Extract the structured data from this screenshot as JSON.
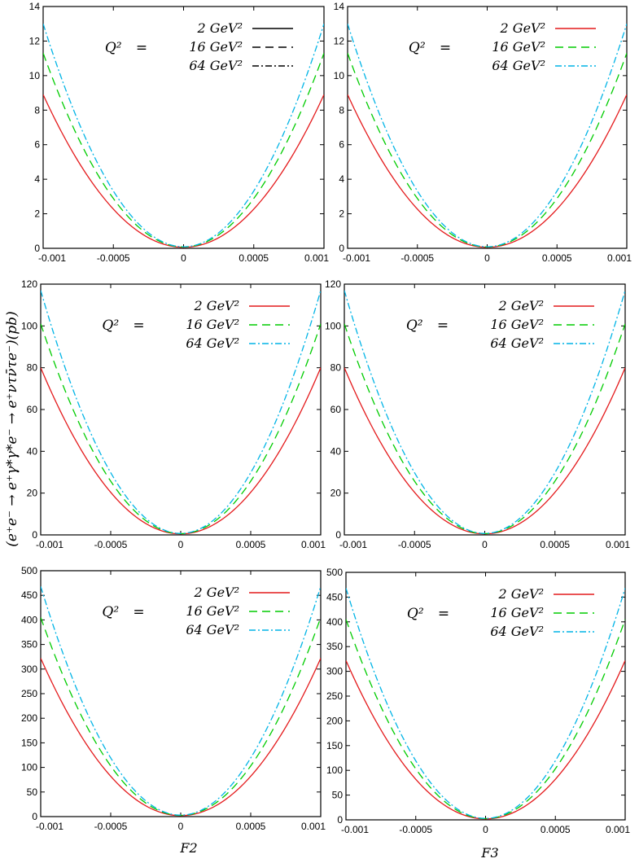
{
  "figure": {
    "ylabel": "(e⁺e⁻ → e⁺γ*γ*e⁻ → e⁺ντν̄τe⁻)(pb)",
    "xlabels": [
      "F2",
      "F3"
    ]
  },
  "legend": {
    "q2_label": "Q²",
    "equals": "=",
    "entries": [
      "2 GeV²",
      "16 GeV²",
      "64 GeV²"
    ]
  },
  "colors": {
    "series_2": "#e41a1c",
    "series_16": "#00cc00",
    "series_64": "#00b4e6",
    "bw": "#000000",
    "axis": "#000000"
  },
  "chart_data": [
    {
      "id": "row1-F2",
      "type": "line",
      "xlabel": "F2",
      "color_mode": "bw-legend",
      "xlim": [
        -0.001,
        0.001
      ],
      "ylim": [
        0,
        14
      ],
      "xticks": [
        "-0.001",
        "-0.0005",
        "0",
        "0.0005",
        "0.001"
      ],
      "yticks": [
        "0",
        "2",
        "4",
        "6",
        "8",
        "10",
        "12",
        "14"
      ],
      "series": [
        {
          "name": "2 GeV²",
          "x": [
            -0.001,
            -0.0005,
            0,
            0.0005,
            0.001
          ],
          "y": [
            8.9,
            2.2,
            0.06,
            2.2,
            8.9
          ]
        },
        {
          "name": "16 GeV²",
          "x": [
            -0.001,
            -0.0005,
            0,
            0.0005,
            0.001
          ],
          "y": [
            11.3,
            2.8,
            0.08,
            2.8,
            11.3
          ]
        },
        {
          "name": "64 GeV²",
          "x": [
            -0.001,
            -0.0005,
            0,
            0.0005,
            0.001
          ],
          "y": [
            13.0,
            3.25,
            0.09,
            3.25,
            13.0
          ]
        }
      ]
    },
    {
      "id": "row1-F3",
      "type": "line",
      "xlabel": "F3",
      "color_mode": "color",
      "xlim": [
        -0.001,
        0.001
      ],
      "ylim": [
        0,
        14
      ],
      "xticks": [
        "-0.001",
        "-0.0005",
        "0",
        "0.0005",
        "0.001"
      ],
      "yticks": [
        "0",
        "2",
        "4",
        "6",
        "8",
        "10",
        "12",
        "14"
      ],
      "series": [
        {
          "name": "2 GeV²",
          "x": [
            -0.001,
            -0.0005,
            0,
            0.0005,
            0.001
          ],
          "y": [
            8.9,
            2.2,
            0.06,
            2.2,
            8.9
          ]
        },
        {
          "name": "16 GeV²",
          "x": [
            -0.001,
            -0.0005,
            0,
            0.0005,
            0.001
          ],
          "y": [
            11.3,
            2.8,
            0.08,
            2.8,
            11.3
          ]
        },
        {
          "name": "64 GeV²",
          "x": [
            -0.001,
            -0.0005,
            0,
            0.0005,
            0.001
          ],
          "y": [
            13.0,
            3.25,
            0.09,
            3.25,
            13.0
          ]
        }
      ]
    },
    {
      "id": "row2-F2",
      "type": "line",
      "xlabel": "F2",
      "color_mode": "color",
      "xlim": [
        -0.001,
        0.001
      ],
      "ylim": [
        0,
        120
      ],
      "xticks": [
        "-0.001",
        "-0.0005",
        "0",
        "0.0005",
        "0.001"
      ],
      "yticks": [
        "0",
        "20",
        "40",
        "60",
        "80",
        "100",
        "120"
      ],
      "series": [
        {
          "name": "2 GeV²",
          "x": [
            -0.001,
            -0.0005,
            0,
            0.0005,
            0.001
          ],
          "y": [
            80,
            20,
            0.5,
            20,
            80
          ]
        },
        {
          "name": "16 GeV²",
          "x": [
            -0.001,
            -0.0005,
            0,
            0.0005,
            0.001
          ],
          "y": [
            101,
            25.3,
            0.6,
            25.3,
            101
          ]
        },
        {
          "name": "64 GeV²",
          "x": [
            -0.001,
            -0.0005,
            0,
            0.0005,
            0.001
          ],
          "y": [
            117,
            29.3,
            0.7,
            29.3,
            117
          ]
        }
      ]
    },
    {
      "id": "row2-F3",
      "type": "line",
      "xlabel": "F3",
      "color_mode": "color",
      "xlim": [
        -0.001,
        0.001
      ],
      "ylim": [
        0,
        120
      ],
      "xticks": [
        "-0.001",
        "-0.0005",
        "0",
        "0.0005",
        "0.001"
      ],
      "yticks": [
        "0",
        "20",
        "40",
        "60",
        "80",
        "100",
        "120"
      ],
      "series": [
        {
          "name": "2 GeV²",
          "x": [
            -0.001,
            -0.0005,
            0,
            0.0005,
            0.001
          ],
          "y": [
            80,
            20,
            0.5,
            20,
            80
          ]
        },
        {
          "name": "16 GeV²",
          "x": [
            -0.001,
            -0.0005,
            0,
            0.0005,
            0.001
          ],
          "y": [
            101,
            25.3,
            0.6,
            25.3,
            101
          ]
        },
        {
          "name": "64 GeV²",
          "x": [
            -0.001,
            -0.0005,
            0,
            0.0005,
            0.001
          ],
          "y": [
            117,
            29.3,
            0.7,
            29.3,
            117
          ]
        }
      ]
    },
    {
      "id": "row3-F2",
      "type": "line",
      "xlabel": "F2",
      "color_mode": "color",
      "xlim": [
        -0.001,
        0.001
      ],
      "ylim": [
        0,
        500
      ],
      "xticks": [
        "-0.001",
        "-0.0005",
        "0",
        "0.0005",
        "0.001"
      ],
      "yticks": [
        "0",
        "50",
        "100",
        "150",
        "200",
        "250",
        "300",
        "350",
        "400",
        "450",
        "500"
      ],
      "series": [
        {
          "name": "2 GeV²",
          "x": [
            -0.001,
            -0.0005,
            0,
            0.0005,
            0.001
          ],
          "y": [
            322,
            80.5,
            2,
            80.5,
            322
          ]
        },
        {
          "name": "16 GeV²",
          "x": [
            -0.001,
            -0.0005,
            0,
            0.0005,
            0.001
          ],
          "y": [
            405,
            101,
            2.5,
            101,
            405
          ]
        },
        {
          "name": "64 GeV²",
          "x": [
            -0.001,
            -0.0005,
            0,
            0.0005,
            0.001
          ],
          "y": [
            468,
            117,
            3,
            117,
            468
          ]
        }
      ]
    },
    {
      "id": "row3-F3",
      "type": "line",
      "xlabel": "F3",
      "color_mode": "color",
      "xlim": [
        -0.001,
        0.001
      ],
      "ylim": [
        0,
        500
      ],
      "xticks": [
        "-0.001",
        "-0.0005",
        "0",
        "0.0005",
        "0.001"
      ],
      "yticks": [
        "0",
        "50",
        "100",
        "150",
        "200",
        "250",
        "300",
        "350",
        "400",
        "450",
        "500"
      ],
      "series": [
        {
          "name": "2 GeV²",
          "x": [
            -0.001,
            -0.0005,
            0,
            0.0005,
            0.001
          ],
          "y": [
            322,
            80.5,
            2,
            80.5,
            322
          ]
        },
        {
          "name": "16 GeV²",
          "x": [
            -0.001,
            -0.0005,
            0,
            0.0005,
            0.001
          ],
          "y": [
            405,
            101,
            2.5,
            101,
            405
          ]
        },
        {
          "name": "64 GeV²",
          "x": [
            -0.001,
            -0.0005,
            0,
            0.0005,
            0.001
          ],
          "y": [
            468,
            117,
            3,
            117,
            468
          ]
        }
      ]
    }
  ]
}
